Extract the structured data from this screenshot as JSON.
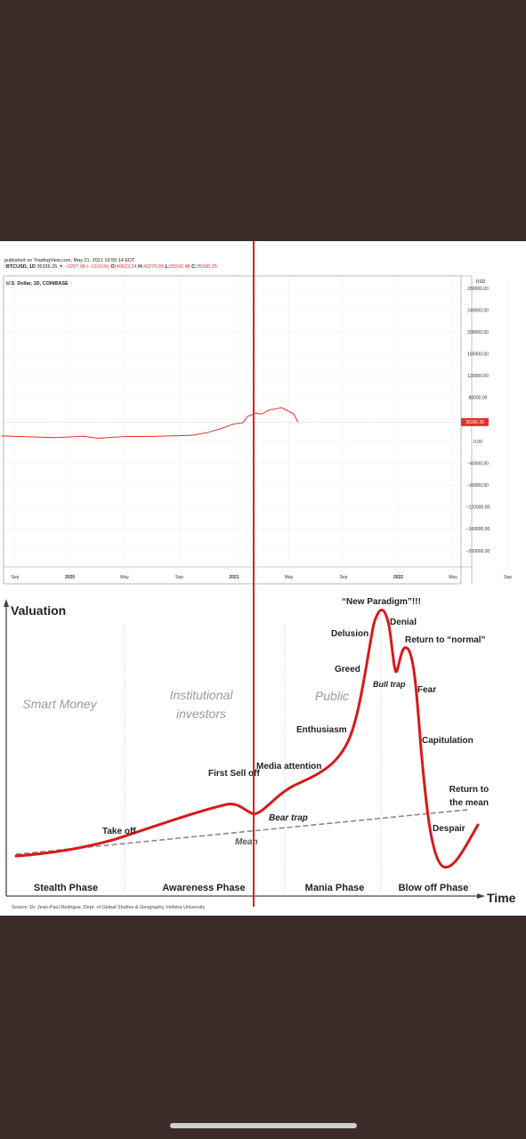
{
  "tradingview": {
    "published": "published on TradingView.com, May 21, 2021 16:55:14 EDT",
    "symbol": ":BTCUSD, 1D",
    "last": "35336.25",
    "change": "−5287.08 (−13.01%)",
    "o_label": "O:",
    "o_value": "40623.24",
    "h_label": "H:",
    "h_value": "42275.99",
    "l_label": "L:",
    "l_value": "35242.48",
    "c_label": "C:",
    "c_value": "35336.25",
    "series_label": "U.S. Dollar, 1D, COINBASE",
    "currency": "USD",
    "price_badge": "35336.25"
  },
  "chart_data": [
    {
      "type": "line",
      "series_label": "U.S. Dollar, 1D, COINBASE",
      "y_ticks": [
        "280000.00",
        "240000.00",
        "200000.00",
        "160000.00",
        "120000.00",
        "80000.00",
        "0.00",
        "−40000.00",
        "−80000.00",
        "−120000.00",
        "−160000.00",
        "−200000.00"
      ],
      "y_tick_values": [
        280000,
        240000,
        200000,
        160000,
        120000,
        80000,
        0,
        -40000,
        -80000,
        -120000,
        -160000,
        -200000
      ],
      "ylim": [
        -225000,
        290000
      ],
      "x_ticks": [
        "Sep",
        "2020",
        "May",
        "Sep",
        "2021",
        "May",
        "Sep",
        "2022",
        "May",
        "Sep"
      ],
      "series": [
        {
          "name": "BTCUSD",
          "color": "#e0312e",
          "x": [
            "2019-08",
            "2019-10",
            "2019-12",
            "2020-02",
            "2020-03",
            "2020-05",
            "2020-07",
            "2020-09",
            "2020-10",
            "2020-11",
            "2020-12",
            "2021-01",
            "2021-01-20",
            "2021-02",
            "2021-02-20",
            "2021-03",
            "2021-03-20",
            "2021-04",
            "2021-04-15",
            "2021-05",
            "2021-05-12",
            "2021-05-21"
          ],
          "y": [
            10000,
            8500,
            7200,
            9500,
            5800,
            9000,
            9200,
            10500,
            11500,
            16000,
            23000,
            32000,
            34000,
            46000,
            52000,
            50000,
            58000,
            59000,
            62000,
            55000,
            50000,
            35336
          ]
        }
      ]
    },
    {
      "type": "line",
      "title": "Valuation",
      "xlabel": "Time",
      "phases": [
        "Stealth Phase",
        "Awareness Phase",
        "Mania Phase",
        "Blow off Phase"
      ],
      "groups": [
        "Smart Money",
        "Institutional investors",
        "Public"
      ],
      "annotations": [
        "Take off",
        "First Sell off",
        "Bear trap",
        "Mean",
        "Media attention",
        "Enthusiasm",
        "Greed",
        "Delusion",
        "“New Paradigm”!!!",
        "Denial",
        "Bull trap",
        "Return to “normal”",
        "Fear",
        "Capitulation",
        "Despair",
        "Return to the mean"
      ],
      "series": [
        {
          "name": "Valuation",
          "color": "#d8191a",
          "style": "solid"
        },
        {
          "name": "Mean",
          "color": "#8a8a8a",
          "style": "dashed"
        }
      ]
    }
  ],
  "cycle": {
    "title": "Valuation",
    "xlabel": "Time",
    "groups": {
      "smart": "Smart Money",
      "inst1": "Institutional",
      "inst2": "investors",
      "public": "Public"
    },
    "phases": {
      "stealth": "Stealth Phase",
      "awareness": "Awareness Phase",
      "mania": "Mania Phase",
      "blowoff": "Blow off Phase"
    },
    "labels": {
      "takeoff": "Take off",
      "firstselloff": "First Sell off",
      "beartrap": "Bear trap",
      "mean": "Mean",
      "media": "Media attention",
      "enthusiasm": "Enthusiasm",
      "greed": "Greed",
      "delusion": "Delusion",
      "paradigm": "“New Paradigm”!!!",
      "denial": "Denial",
      "bulltrap": "Bull trap",
      "returnnormal": "Return to “normal”",
      "fear": "Fear",
      "capitulation": "Capitulation",
      "despair": "Despair",
      "returnmean1": "Return to",
      "returnmean2": "the mean"
    },
    "source": "Source: Dr. Jean-Paul Rodrigue, Dept. of Global Studies & Geography, Hofstra University"
  }
}
